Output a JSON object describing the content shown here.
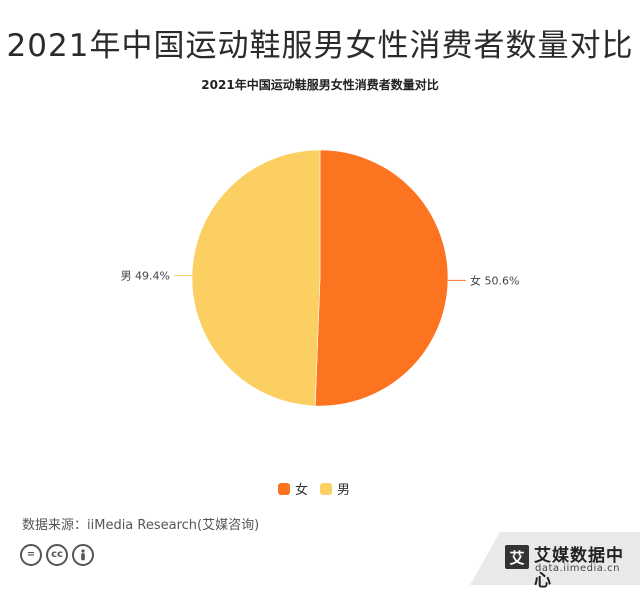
{
  "header": {
    "title": "2021年中国运动鞋服男女性消费者数量对比"
  },
  "chart_data": {
    "type": "pie",
    "title": "2021年中国运动鞋服男女性消费者数量对比",
    "slices": [
      {
        "name": "女",
        "value": 50.6,
        "label": "女 50.6%",
        "color": "#fc7320"
      },
      {
        "name": "男",
        "value": 49.4,
        "label": "男 49.4%",
        "color": "#fccf63"
      }
    ],
    "legend": {
      "placement": "bottom-center",
      "items": [
        "女",
        "男"
      ]
    }
  },
  "footer": {
    "source": "数据来源：iiMedia Research(艾媒咨询)",
    "license_icons": [
      "equals-icon",
      "cc-icon",
      "person-icon"
    ],
    "brand": {
      "logo_char": "艾",
      "name": "艾媒数据中心",
      "url": "data.iimedia.cn"
    }
  }
}
